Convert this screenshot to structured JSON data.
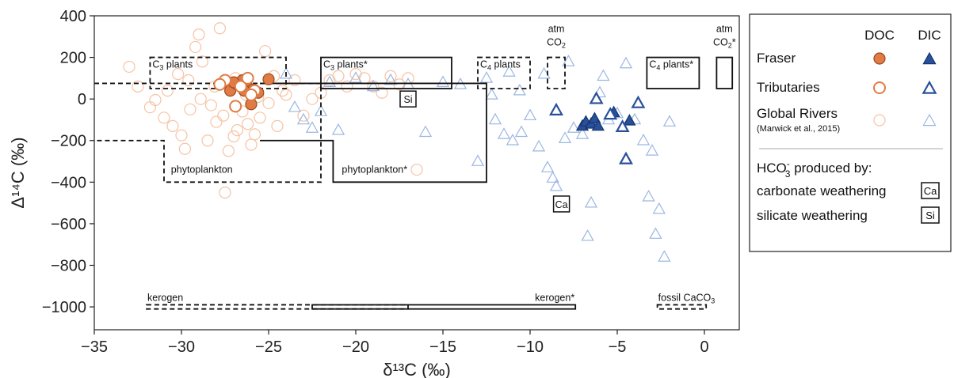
{
  "chart_data": {
    "type": "scatter",
    "xlabel": "δ¹³C (‰)",
    "ylabel": "Δ¹⁴C (‰)",
    "xlim": [
      -35,
      2
    ],
    "ylim": [
      -1110,
      400
    ],
    "xticks": [
      -35,
      -30,
      -25,
      -20,
      -15,
      -10,
      -5,
      0
    ],
    "yticks": [
      400,
      200,
      0,
      -200,
      -400,
      -600,
      -800,
      -1000
    ],
    "grid": false,
    "legend_position": "right",
    "colors": {
      "doc": "#e07b45",
      "doc_global": "#f6c3a4",
      "dic": "#28509a",
      "dic_global": "#9bb6e3"
    },
    "legend": {
      "col_doc": "DOC",
      "col_dic": "DIC",
      "fraser": "Fraser",
      "tributaries": "Tributaries",
      "global": "Global Rivers",
      "global_ref": "(Marwick et al., 2015)",
      "hco3_main": "HCO",
      "hco3_sup": "-",
      "hco3_sub": "3",
      "hco3_rest": " produced by:",
      "carbonate": "carbonate weathering",
      "carbonate_tag": "Ca",
      "silicate": "silicate weathering",
      "silicate_tag": "Si"
    },
    "markers": [
      {
        "label": "Si",
        "x": -17,
        "y": 0
      },
      {
        "label": "Ca",
        "x": -8.2,
        "y": -505
      }
    ],
    "boxes": [
      {
        "label_pre": "C",
        "label_sub": "3",
        "label_post": " plants",
        "dashed": true,
        "x1": -31.8,
        "x2": -24,
        "y1": 50,
        "y2": 200,
        "label_pos": "tl"
      },
      {
        "label_pre": "C",
        "label_sub": "3",
        "label_post": " plants*",
        "dashed": false,
        "x1": -22,
        "x2": -14.5,
        "y1": 50,
        "y2": 200,
        "label_pos": "tl"
      },
      {
        "label_pre": "C",
        "label_sub": "4",
        "label_post": " plants",
        "dashed": true,
        "x1": -13,
        "x2": -10,
        "y1": 50,
        "y2": 200,
        "label_pos": "tl"
      },
      {
        "label_pre": "C",
        "label_sub": "4",
        "label_post": " plants*",
        "dashed": false,
        "x1": -3.3,
        "x2": -0.3,
        "y1": 50,
        "y2": 200,
        "label_pos": "tl"
      },
      {
        "label_pre": "atm",
        "line2_pre": "CO",
        "line2_sub": "2",
        "line2_post": "",
        "dashed": true,
        "x1": -9,
        "x2": -8,
        "y1": 50,
        "y2": 200,
        "label_pos": "above"
      },
      {
        "label_pre": "atm",
        "line2_pre": "CO",
        "line2_sub": "2",
        "line2_post": "*",
        "dashed": false,
        "x1": 0.7,
        "x2": 1.6,
        "y1": 50,
        "y2": 200,
        "label_pos": "above"
      },
      {
        "label_pre": "kerogen",
        "dashed": true,
        "x1": -32,
        "x2": -17,
        "y1": -1010,
        "y2": -990,
        "label_pos": "above-left"
      },
      {
        "label_pre": "kerogen*",
        "dashed": false,
        "x1": -22.5,
        "x2": -7.4,
        "y1": -1010,
        "y2": -990,
        "label_pos": "above-right"
      },
      {
        "label_pre": "fossil CaCO",
        "label_sub": "3",
        "label_post": "",
        "dashed": true,
        "x1": -2.7,
        "x2": 0.1,
        "y1": -1010,
        "y2": -990,
        "label_pos": "above-left"
      }
    ],
    "outlines": [
      {
        "label": "phytoplankton",
        "dashed": true,
        "points": [
          [
            -35,
            75
          ],
          [
            -22,
            75
          ],
          [
            -22,
            -400
          ],
          [
            -31,
            -400
          ],
          [
            -31,
            -200
          ],
          [
            -35,
            -200
          ]
        ],
        "label_at": [
          -30.6,
          -355
        ]
      },
      {
        "label": "phytoplankton*",
        "dashed": false,
        "points": [
          [
            -25.5,
            75
          ],
          [
            -12.5,
            75
          ],
          [
            -12.5,
            -400
          ],
          [
            -21.3,
            -400
          ],
          [
            -21.3,
            -200
          ],
          [
            -25.5,
            -200
          ]
        ],
        "label_at": [
          -20.8,
          -355
        ]
      }
    ],
    "series": [
      {
        "name": "Global Rivers",
        "group": "DOC",
        "values_extent": {
          "x": [
            -33.5,
            -16.5
          ],
          "y": [
            -455,
            340
          ]
        },
        "points": [
          [
            -33,
            155
          ],
          [
            -32.5,
            60
          ],
          [
            -31.5,
            -5
          ],
          [
            -31,
            -90
          ],
          [
            -30.5,
            -130
          ],
          [
            -30,
            -175
          ],
          [
            -29.8,
            -240
          ],
          [
            -29.5,
            -50
          ],
          [
            -29.2,
            250
          ],
          [
            -29,
            310
          ],
          [
            -28.8,
            180
          ],
          [
            -28.5,
            -200
          ],
          [
            -28.3,
            -30
          ],
          [
            -28,
            -110
          ],
          [
            -27.8,
            340
          ],
          [
            -27.5,
            -450
          ],
          [
            -27.3,
            -250
          ],
          [
            -27,
            -180
          ],
          [
            -26.8,
            -150
          ],
          [
            -26.5,
            -60
          ],
          [
            -26.3,
            20
          ],
          [
            -26,
            -220
          ],
          [
            -25.8,
            -170
          ],
          [
            -25.5,
            -90
          ],
          [
            -25.2,
            230
          ],
          [
            -25,
            -20
          ],
          [
            -24.7,
            110
          ],
          [
            -24.5,
            -130
          ],
          [
            -24.2,
            40
          ],
          [
            -24,
            20
          ],
          [
            -23.5,
            90
          ],
          [
            -23,
            -80
          ],
          [
            -22.5,
            0
          ],
          [
            -22,
            30
          ],
          [
            -21.5,
            90
          ],
          [
            -21,
            110
          ],
          [
            -20.5,
            60
          ],
          [
            -20,
            120
          ],
          [
            -19.5,
            100
          ],
          [
            -19,
            60
          ],
          [
            -18.5,
            30
          ],
          [
            -18,
            110
          ],
          [
            -17.5,
            70
          ],
          [
            -17,
            100
          ],
          [
            -16.5,
            -340
          ],
          [
            -31.8,
            -40
          ],
          [
            -30.8,
            40
          ],
          [
            -30.2,
            120
          ],
          [
            -29.6,
            90
          ],
          [
            -28.9,
            0
          ],
          [
            -28.1,
            60
          ],
          [
            -27.6,
            -80
          ],
          [
            -26.9,
            100
          ],
          [
            -26.2,
            -120
          ],
          [
            -25.6,
            10
          ]
        ]
      },
      {
        "name": "Global Rivers",
        "group": "DIC",
        "values_extent": {
          "x": [
            -24.5,
            -1.5
          ],
          "y": [
            -760,
            185
          ]
        },
        "points": [
          [
            -24,
            120
          ],
          [
            -23.5,
            -40
          ],
          [
            -23,
            -100
          ],
          [
            -22.5,
            -140
          ],
          [
            -22,
            -60
          ],
          [
            -21.5,
            80
          ],
          [
            -21,
            -150
          ],
          [
            -20,
            100
          ],
          [
            -19,
            60
          ],
          [
            -18,
            90
          ],
          [
            -17,
            70
          ],
          [
            -16,
            -160
          ],
          [
            -15,
            80
          ],
          [
            -14,
            70
          ],
          [
            -13,
            -300
          ],
          [
            -12.5,
            100
          ],
          [
            -12,
            -100
          ],
          [
            -11.5,
            -170
          ],
          [
            -11,
            -200
          ],
          [
            -10.5,
            -160
          ],
          [
            -10,
            -80
          ],
          [
            -9.5,
            -230
          ],
          [
            -9,
            -330
          ],
          [
            -8.7,
            -380
          ],
          [
            -8.5,
            -420
          ],
          [
            -8,
            -190
          ],
          [
            -7.5,
            -140
          ],
          [
            -7,
            -170
          ],
          [
            -6.7,
            -660
          ],
          [
            -6.5,
            -500
          ],
          [
            -6,
            30
          ],
          [
            -5.5,
            -100
          ],
          [
            -5,
            -70
          ],
          [
            -4.5,
            170
          ],
          [
            -4,
            -100
          ],
          [
            -3.5,
            -200
          ],
          [
            -3.2,
            -470
          ],
          [
            -3,
            -250
          ],
          [
            -2.8,
            -650
          ],
          [
            -2.6,
            -530
          ],
          [
            -2.3,
            -760
          ],
          [
            -2,
            -110
          ],
          [
            -9.2,
            120
          ],
          [
            -11.2,
            130
          ],
          [
            -10.6,
            40
          ],
          [
            -12.2,
            20
          ],
          [
            -7.8,
            180
          ],
          [
            -5.8,
            110
          ]
        ]
      },
      {
        "name": "Fraser",
        "group": "DOC",
        "points": [
          [
            -27.2,
            40
          ],
          [
            -26.8,
            70
          ],
          [
            -26.5,
            90
          ],
          [
            -26.2,
            55
          ],
          [
            -25.9,
            45
          ],
          [
            -25.6,
            30
          ],
          [
            -25,
            95
          ],
          [
            -26,
            -25
          ],
          [
            -27,
            80
          ],
          [
            -26.4,
            40
          ]
        ]
      },
      {
        "name": "Tributaries",
        "group": "DOC",
        "points": [
          [
            -27.5,
            90
          ],
          [
            -26.9,
            -35
          ],
          [
            -26.6,
            60
          ],
          [
            -25.8,
            40
          ],
          [
            -26.2,
            100
          ],
          [
            -27.8,
            70
          ],
          [
            -26,
            20
          ]
        ]
      },
      {
        "name": "Fraser",
        "group": "DIC",
        "points": [
          [
            -7,
            -130
          ],
          [
            -6.8,
            -110
          ],
          [
            -6.5,
            -120
          ],
          [
            -6.3,
            -95
          ],
          [
            -5.2,
            -65
          ],
          [
            -4.3,
            -105
          ],
          [
            -6.1,
            -130
          ]
        ]
      },
      {
        "name": "Tributaries",
        "group": "DIC",
        "points": [
          [
            -8.5,
            -55
          ],
          [
            -6.2,
            0
          ],
          [
            -4.7,
            -135
          ],
          [
            -3.8,
            -20
          ],
          [
            -4.5,
            -290
          ],
          [
            -5.4,
            -75
          ]
        ]
      }
    ]
  }
}
